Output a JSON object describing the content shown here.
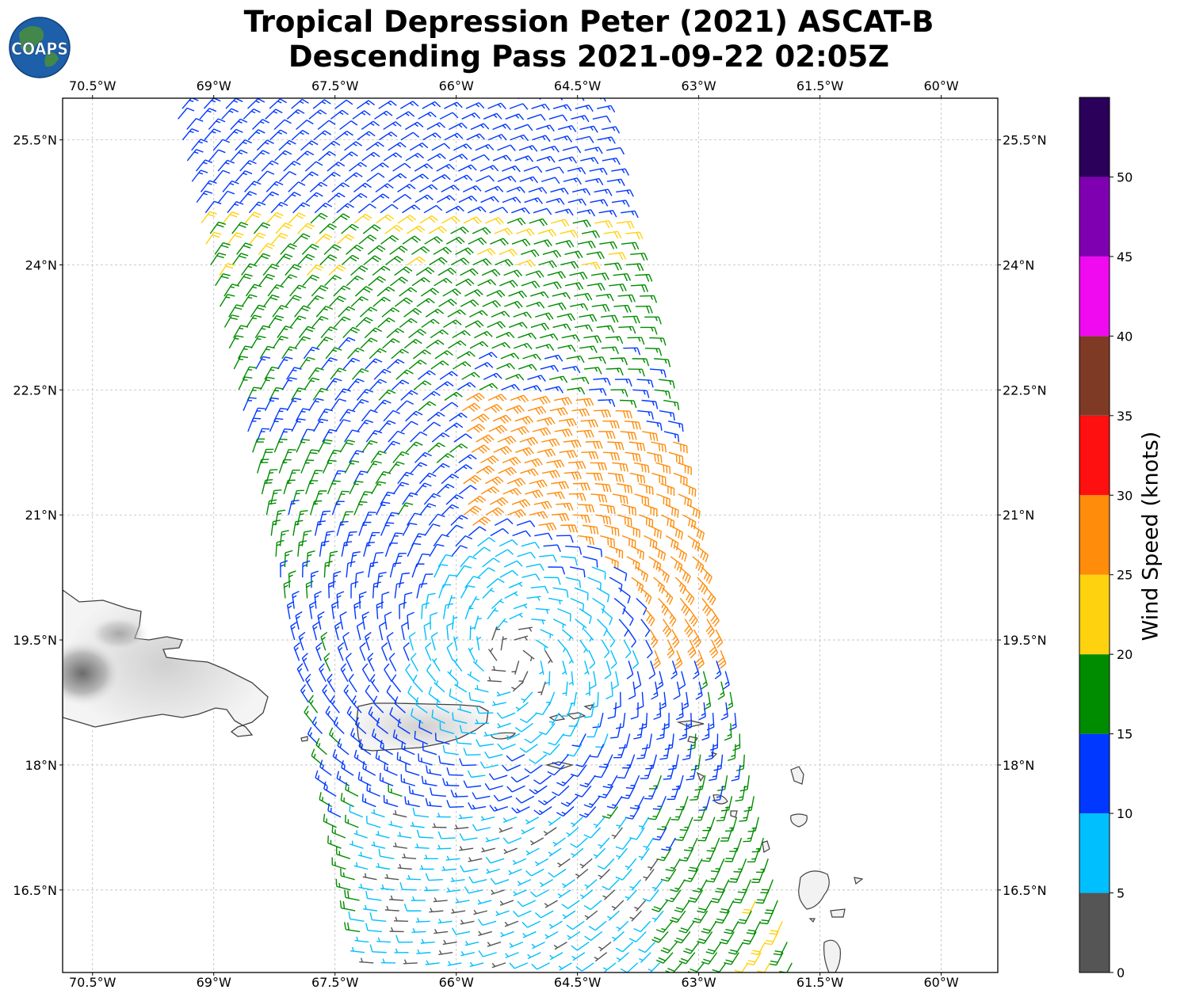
{
  "title": {
    "line1": "Tropical Depression Peter (2021) ASCAT-B",
    "line2": "Descending Pass 2021-09-22 02:05Z"
  },
  "logo": {
    "text": "COAPS",
    "icon": "globe-icon"
  },
  "map": {
    "lon_labels": [
      "70.5°W",
      "69°W",
      "67.5°W",
      "66°W",
      "64.5°W",
      "63°W",
      "61.5°W",
      "60°W"
    ],
    "lat_labels": [
      "25.5°N",
      "24°N",
      "22.5°N",
      "21°N",
      "19.5°N",
      "18°N",
      "16.5°N"
    ],
    "lon_range": [
      -70.87,
      -59.3
    ],
    "lat_range": [
      15.51,
      26.0
    ],
    "gridlines": true,
    "land_color": "#f2f2f2",
    "coast_color": "#404040"
  },
  "colorbar": {
    "label": "Wind Speed (knots)",
    "ticks": [
      "0",
      "5",
      "10",
      "15",
      "20",
      "25",
      "30",
      "35",
      "40",
      "45",
      "50"
    ],
    "bins": [
      {
        "min": 0,
        "max": 5,
        "color": "#555555"
      },
      {
        "min": 5,
        "max": 10,
        "color": "#00bfff"
      },
      {
        "min": 10,
        "max": 15,
        "color": "#0038ff"
      },
      {
        "min": 15,
        "max": 20,
        "color": "#008c00"
      },
      {
        "min": 20,
        "max": 25,
        "color": "#ffd20f"
      },
      {
        "min": 25,
        "max": 30,
        "color": "#ff8c0a"
      },
      {
        "min": 30,
        "max": 35,
        "color": "#ff1010"
      },
      {
        "min": 35,
        "max": 40,
        "color": "#7f3a25"
      },
      {
        "min": 40,
        "max": 45,
        "color": "#f00af0"
      },
      {
        "min": 45,
        "max": 50,
        "color": "#7f00b0"
      },
      {
        "min": 50,
        "max": 55,
        "color": "#2a005a"
      }
    ]
  },
  "storm_center": {
    "lon": -65.3,
    "lat": 19.3
  }
}
